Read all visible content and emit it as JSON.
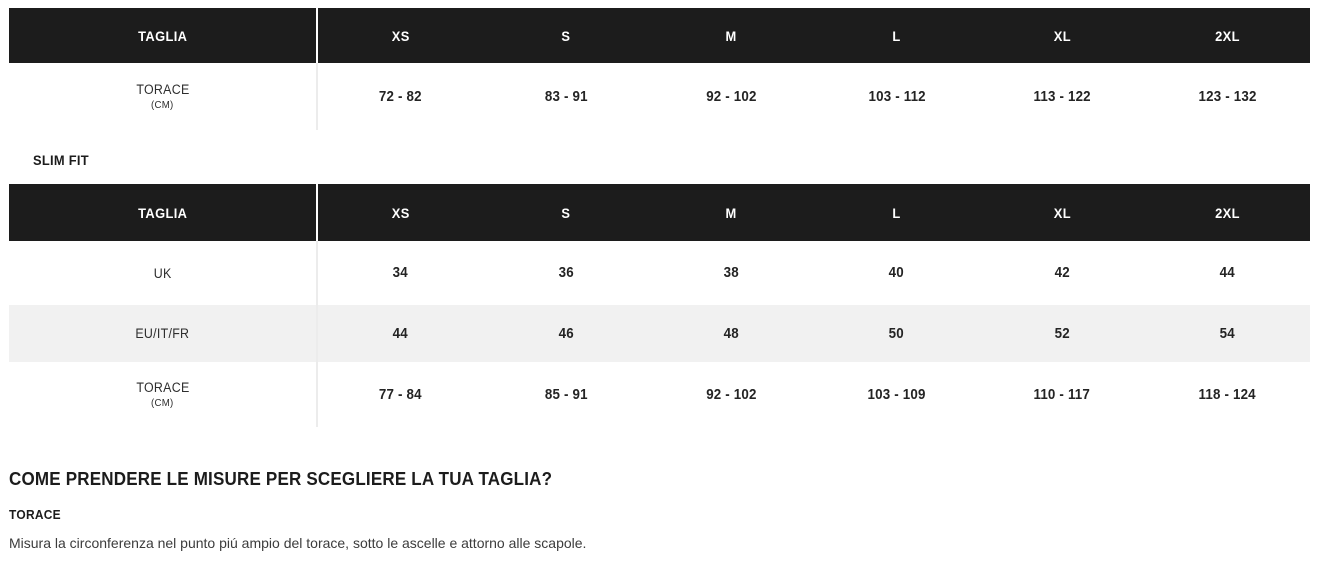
{
  "theme": {
    "header_bg": "#1c1c1c",
    "header_text": "#ffffff",
    "alt_row_bg": "#f1f1f1",
    "body_text": "#2b2b2b"
  },
  "regular_table": {
    "header": [
      "TAGLIA",
      "XS",
      "S",
      "M",
      "L",
      "XL",
      "2XL"
    ],
    "rows": [
      {
        "label": "TORACE",
        "sublabel": "(CM)",
        "values": [
          "72 - 82",
          "83 - 91",
          "92 - 102",
          "103 - 112",
          "113 - 122",
          "123 - 132"
        ]
      }
    ]
  },
  "slim_fit_label": "SLIM FIT",
  "slim_table": {
    "header": [
      "TAGLIA",
      "XS",
      "S",
      "M",
      "L",
      "XL",
      "2XL"
    ],
    "rows": [
      {
        "label": "UK",
        "sublabel": "",
        "values": [
          "34",
          "36",
          "38",
          "40",
          "42",
          "44"
        ]
      },
      {
        "label": "EU/IT/FR",
        "sublabel": "",
        "values": [
          "44",
          "46",
          "48",
          "50",
          "52",
          "54"
        ]
      },
      {
        "label": "TORACE",
        "sublabel": "(CM)",
        "values": [
          "77 - 84",
          "85 - 91",
          "92 - 102",
          "103 - 109",
          "110 - 117",
          "118 - 124"
        ]
      }
    ]
  },
  "guide": {
    "title": "COME PRENDERE LE MISURE PER SCEGLIERE LA TUA TAGLIA?",
    "sections": [
      {
        "heading": "TORACE",
        "body": "Misura la circonferenza nel punto piú ampio del torace, sotto le ascelle e attorno alle scapole."
      }
    ]
  }
}
